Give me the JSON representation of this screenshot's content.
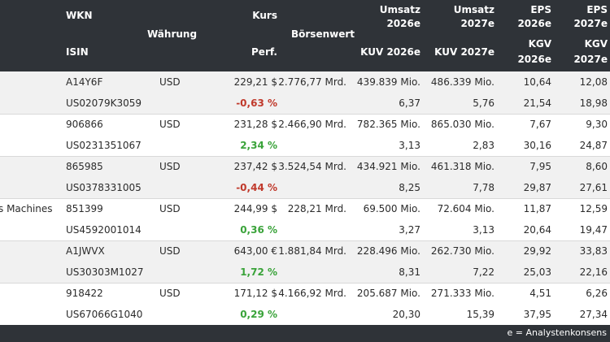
{
  "header": {
    "wkn": "WKN",
    "isin": "ISIN",
    "waehrung": "Währung",
    "kurs": "Kurs",
    "perf": "Perf.",
    "boersenwert": "Börsenwert",
    "umsatz2026_l1": "Umsatz",
    "umsatz2026_l2": "2026e",
    "kuv2026": "KUV 2026e",
    "umsatz2027_l1": "Umsatz",
    "umsatz2027_l2": "2027e",
    "kuv2027": "KUV 2027e",
    "eps2026_l1": "EPS",
    "eps2026_l2": "2026e",
    "kgv2026_l1": "KGV",
    "kgv2026_l2": "2026e",
    "eps2027_l1": "EPS",
    "eps2027_l2": "2027e",
    "kgv2027_l1": "KGV",
    "kgv2027_l2": "2027e"
  },
  "rows": [
    {
      "name": "",
      "wkn": "A14Y6F",
      "isin": "US02079K3059",
      "currency": "USD",
      "kurs": "229,21 $",
      "perf": "-0,63 %",
      "boersenwert": "2.776,77 Mrd.",
      "umsatz2026": "439.839 Mio.",
      "kuv2026": "6,37",
      "umsatz2027": "486.339 Mio.",
      "kuv2027": "5,76",
      "eps2026": "10,64",
      "kgv2026": "21,54",
      "eps2027": "12,08",
      "kgv2027": "18,98"
    },
    {
      "name": "",
      "wkn": "906866",
      "isin": "US0231351067",
      "currency": "USD",
      "kurs": "231,28 $",
      "perf": "2,34 %",
      "boersenwert": "2.466,90 Mrd.",
      "umsatz2026": "782.365 Mio.",
      "kuv2026": "3,13",
      "umsatz2027": "865.030 Mio.",
      "kuv2027": "2,83",
      "eps2026": "7,67",
      "kgv2026": "30,16",
      "eps2027": "9,30",
      "kgv2027": "24,87"
    },
    {
      "name": "",
      "wkn": "865985",
      "isin": "US0378331005",
      "currency": "USD",
      "kurs": "237,42 $",
      "perf": "-0,44 %",
      "boersenwert": "3.524,54 Mrd.",
      "umsatz2026": "434.921 Mio.",
      "kuv2026": "8,25",
      "umsatz2027": "461.318 Mio.",
      "kuv2027": "7,78",
      "eps2026": "7,95",
      "kgv2026": "29,87",
      "eps2027": "8,60",
      "kgv2027": "27,61"
    },
    {
      "name": "s Machines",
      "wkn": "851399",
      "isin": "US4592001014",
      "currency": "USD",
      "kurs": "244,99 $",
      "perf": "0,36 %",
      "boersenwert": "228,21 Mrd.",
      "umsatz2026": "69.500 Mio.",
      "kuv2026": "3,27",
      "umsatz2027": "72.604 Mio.",
      "kuv2027": "3,13",
      "eps2026": "11,87",
      "kgv2026": "20,64",
      "eps2027": "12,59",
      "kgv2027": "19,47"
    },
    {
      "name": "",
      "wkn": "A1JWVX",
      "isin": "US30303M1027",
      "currency": "USD",
      "kurs": "643,00 €",
      "perf": "1,72 %",
      "boersenwert": "1.881,84 Mrd.",
      "umsatz2026": "228.496 Mio.",
      "kuv2026": "8,31",
      "umsatz2027": "262.730 Mio.",
      "kuv2027": "7,22",
      "eps2026": "29,92",
      "kgv2026": "25,03",
      "eps2027": "33,83",
      "kgv2027": "22,16"
    },
    {
      "name": "",
      "wkn": "918422",
      "isin": "US67066G1040",
      "currency": "USD",
      "kurs": "171,12 $",
      "perf": "0,29 %",
      "boersenwert": "4.166,92 Mrd.",
      "umsatz2026": "205.687 Mio.",
      "kuv2026": "20,30",
      "umsatz2027": "271.333 Mio.",
      "kuv2027": "15,39",
      "eps2026": "4,51",
      "kgv2026": "37,95",
      "eps2027": "6,26",
      "kgv2027": "27,34"
    }
  ],
  "footer": {
    "note": "e = Analystenkonsens"
  },
  "colors": {
    "header_bg": "#2f3338",
    "negative": "#c0392b",
    "positive": "#3aa33a",
    "row_shade": "#f1f1f1"
  }
}
